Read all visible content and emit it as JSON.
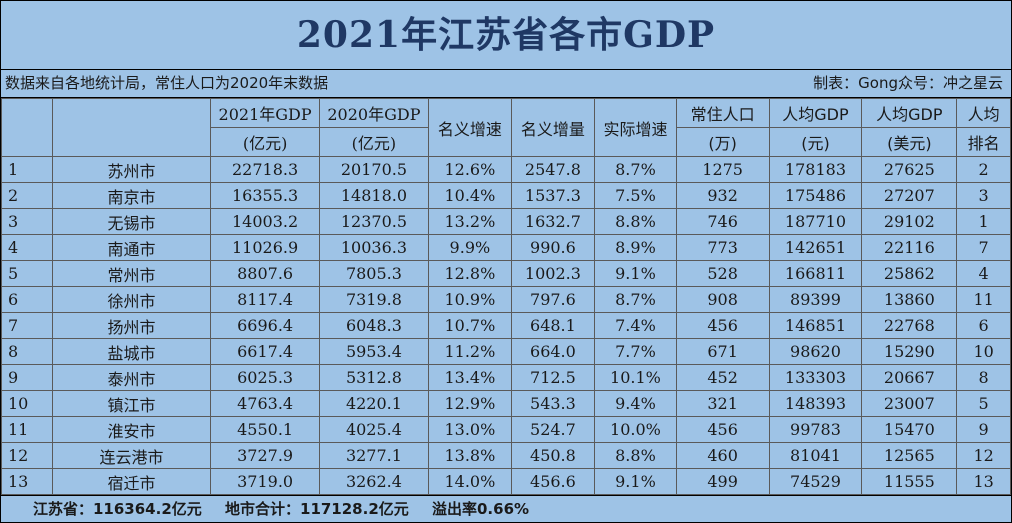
{
  "title": "2021年江苏省各市GDP",
  "source_note": "数据来自各地统计局，常住人口为2020年末数据",
  "credit": "制表：Gong众号：冲之星云",
  "headers": [
    {
      "l1": "",
      "l2": ""
    },
    {
      "l1": "",
      "l2": ""
    },
    {
      "l1": "2021年GDP",
      "l2": "(亿元)"
    },
    {
      "l1": "2020年GDP",
      "l2": "(亿元)"
    },
    {
      "l1": "名义增速",
      "l2": ""
    },
    {
      "l1": "名义增量",
      "l2": ""
    },
    {
      "l1": "实际增速",
      "l2": ""
    },
    {
      "l1": "常住人口",
      "l2": "(万)"
    },
    {
      "l1": "人均GDP",
      "l2": "(元)"
    },
    {
      "l1": "人均GDP",
      "l2": "(美元)"
    },
    {
      "l1": "人均",
      "l2": "排名"
    }
  ],
  "rows": [
    [
      "1",
      "苏州市",
      "22718.3",
      "20170.5",
      "12.6%",
      "2547.8",
      "8.7%",
      "1275",
      "178183",
      "27625",
      "2"
    ],
    [
      "2",
      "南京市",
      "16355.3",
      "14818.0",
      "10.4%",
      "1537.3",
      "7.5%",
      "932",
      "175486",
      "27207",
      "3"
    ],
    [
      "3",
      "无锡市",
      "14003.2",
      "12370.5",
      "13.2%",
      "1632.7",
      "8.8%",
      "746",
      "187710",
      "29102",
      "1"
    ],
    [
      "4",
      "南通市",
      "11026.9",
      "10036.3",
      "9.9%",
      "990.6",
      "8.9%",
      "773",
      "142651",
      "22116",
      "7"
    ],
    [
      "5",
      "常州市",
      "8807.6",
      "7805.3",
      "12.8%",
      "1002.3",
      "9.1%",
      "528",
      "166811",
      "25862",
      "4"
    ],
    [
      "6",
      "徐州市",
      "8117.4",
      "7319.8",
      "10.9%",
      "797.6",
      "8.7%",
      "908",
      "89399",
      "13860",
      "11"
    ],
    [
      "7",
      "扬州市",
      "6696.4",
      "6048.3",
      "10.7%",
      "648.1",
      "7.4%",
      "456",
      "146851",
      "22768",
      "6"
    ],
    [
      "8",
      "盐城市",
      "6617.4",
      "5953.4",
      "11.2%",
      "664.0",
      "7.7%",
      "671",
      "98620",
      "15290",
      "10"
    ],
    [
      "9",
      "泰州市",
      "6025.3",
      "5312.8",
      "13.4%",
      "712.5",
      "10.1%",
      "452",
      "133303",
      "20667",
      "8"
    ],
    [
      "10",
      "镇江市",
      "4763.4",
      "4220.1",
      "12.9%",
      "543.3",
      "9.4%",
      "321",
      "148393",
      "23007",
      "5"
    ],
    [
      "11",
      "淮安市",
      "4550.1",
      "4025.4",
      "13.0%",
      "524.7",
      "10.0%",
      "456",
      "99783",
      "15470",
      "9"
    ],
    [
      "12",
      "连云港市",
      "3727.9",
      "3277.1",
      "13.8%",
      "450.8",
      "8.8%",
      "460",
      "81041",
      "12565",
      "12"
    ],
    [
      "13",
      "宿迁市",
      "3719.0",
      "3262.4",
      "14.0%",
      "456.6",
      "9.1%",
      "499",
      "74529",
      "11555",
      "13"
    ]
  ],
  "footer": {
    "province_total": "江苏省：116364.2亿元",
    "city_sum": "地市合计：117128.2亿元",
    "overflow_rate": "溢出率0.66%"
  }
}
